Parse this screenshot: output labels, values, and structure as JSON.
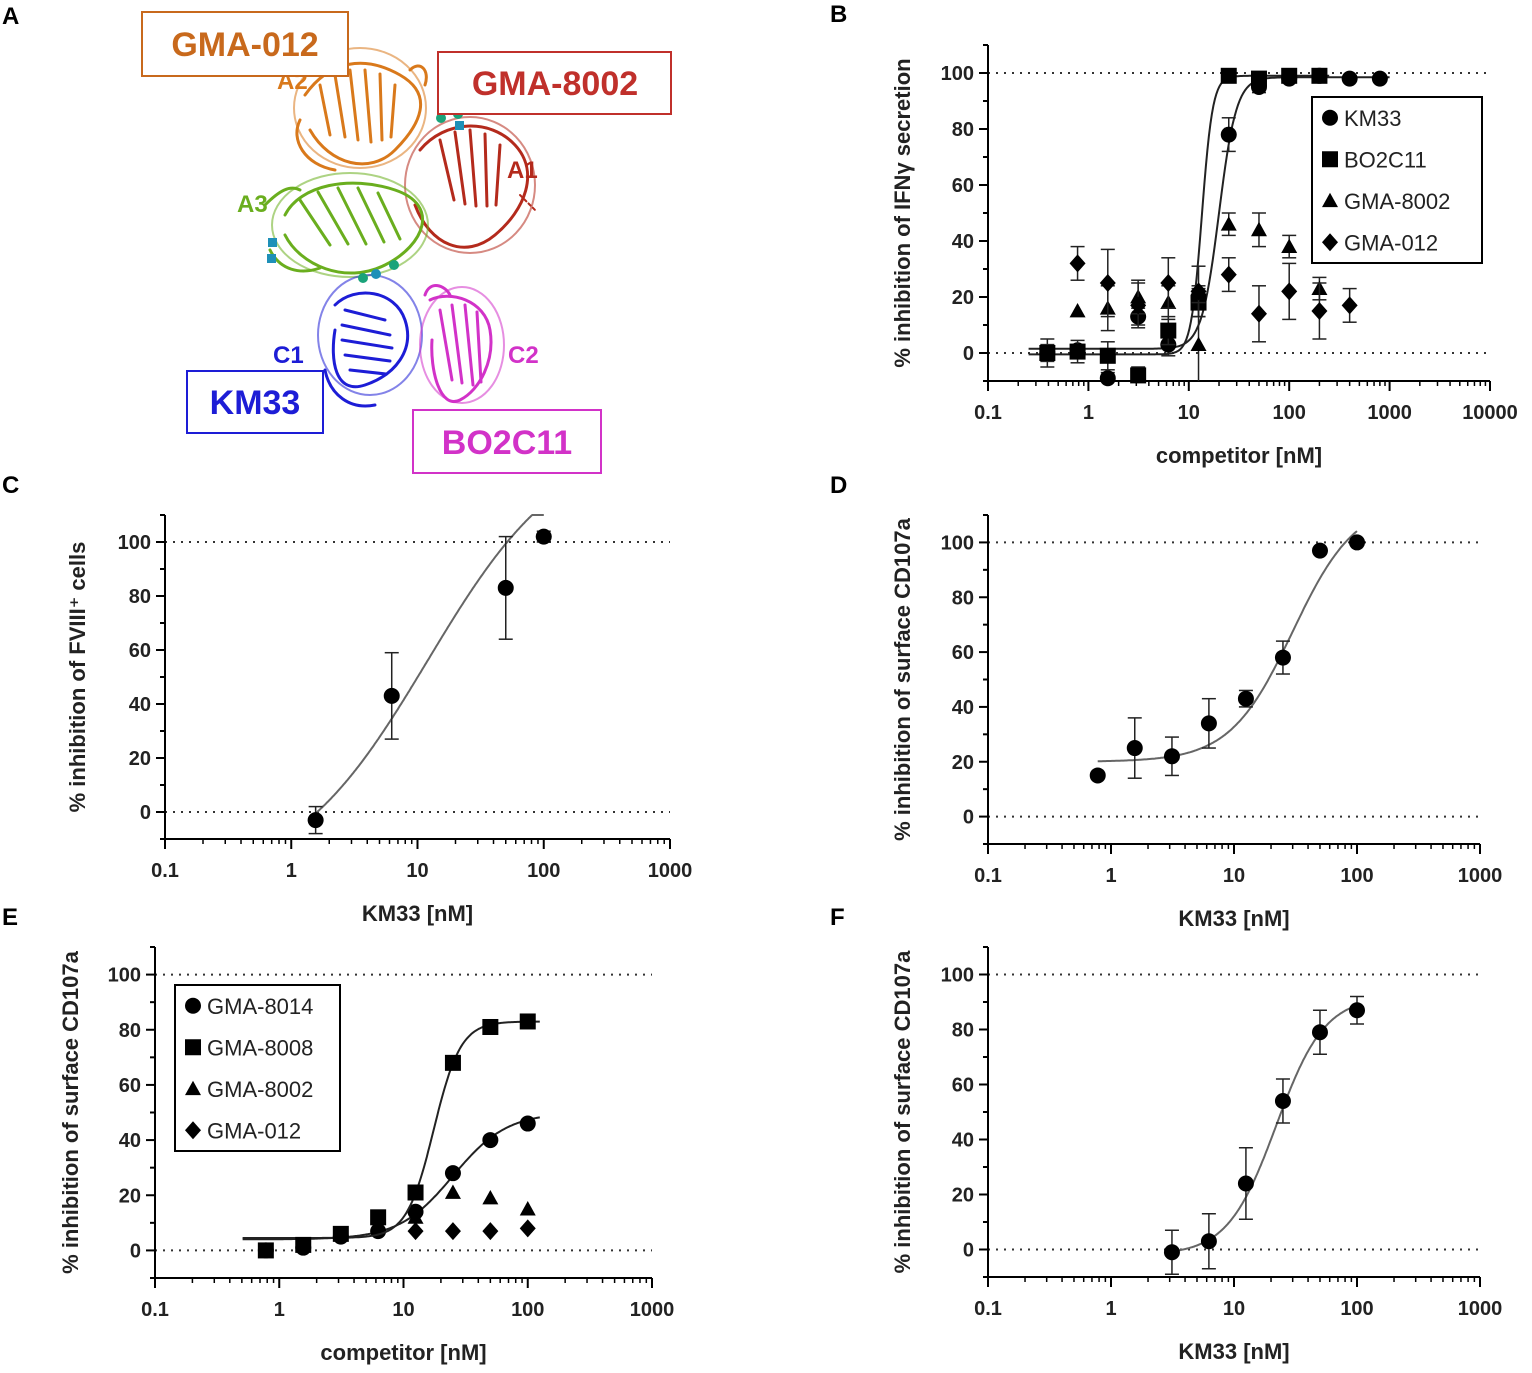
{
  "panel_a": {
    "letter": "A",
    "antibodies": [
      {
        "label": "GMA-012",
        "color": "#c8691c"
      },
      {
        "label": "GMA-8002",
        "color": "#c0302b"
      },
      {
        "label": "KM33",
        "color": "#1d1dd6"
      },
      {
        "label": "BO2C11",
        "color": "#d232c8"
      }
    ],
    "domains": [
      {
        "label": "A1",
        "color": "#b42a1c"
      },
      {
        "label": "A2",
        "color": "#d9791b"
      },
      {
        "label": "A3",
        "color": "#6aae1e"
      },
      {
        "label": "C1",
        "color": "#1d1dd6"
      },
      {
        "label": "C2",
        "color": "#d232c8"
      }
    ]
  },
  "chart_data": [
    {
      "panel": "B",
      "type": "scatter",
      "xlabel": "competitor [nM]",
      "ylabel": "% inhibition of IFNγ secretion",
      "xscale": "log",
      "xlim": [
        0.1,
        10000
      ],
      "ylim": [
        -10,
        110
      ],
      "xticks": [
        0.1,
        1,
        10,
        100,
        1000,
        10000
      ],
      "xtick_labels": [
        "0.1",
        "1",
        "10",
        "100",
        "1000",
        "10000"
      ],
      "yticks": [
        0,
        20,
        40,
        60,
        80,
        100
      ],
      "ytick_labels": [
        "0",
        "20",
        "40",
        "60",
        "80",
        "100"
      ],
      "reference_lines": [
        0,
        100
      ],
      "legend": "top-right",
      "series": [
        {
          "name": "KM33",
          "marker": "circle",
          "x": [
            0.39,
            0.78,
            1.56,
            3.13,
            6.25,
            12.5,
            25,
            50,
            100,
            200,
            400,
            800
          ],
          "y": [
            0,
            1,
            -9,
            13,
            3,
            20,
            78,
            95,
            98,
            99,
            98,
            98
          ],
          "err": [
            3,
            2,
            2,
            3,
            4,
            4,
            6,
            2,
            1,
            1,
            1,
            1
          ],
          "fit": {
            "bottom": 1.5,
            "top": 98.5,
            "ec50": 20,
            "hill": 5
          }
        },
        {
          "name": "BO2C11",
          "marker": "square",
          "x": [
            0.39,
            0.78,
            1.56,
            3.13,
            6.25,
            12.5,
            25,
            50,
            100,
            200
          ],
          "y": [
            0,
            0.5,
            -1,
            -8,
            8,
            18,
            99,
            98,
            99,
            99
          ],
          "err": [
            5,
            4,
            5,
            3,
            5,
            5,
            1,
            1,
            1,
            1
          ],
          "fit": {
            "bottom": -0.5,
            "top": 99,
            "ec50": 13.5,
            "hill": 8
          }
        },
        {
          "name": "GMA-8002",
          "marker": "triangle",
          "x": [
            0.78,
            1.56,
            3.13,
            6.25,
            12.5,
            25,
            50,
            100,
            200
          ],
          "y": [
            15,
            16,
            20,
            18,
            3,
            46,
            44,
            38,
            23
          ],
          "err": [
            0,
            8,
            6,
            6,
            15,
            4,
            6,
            4,
            4
          ]
        },
        {
          "name": "GMA-012",
          "marker": "diamond",
          "x": [
            0.78,
            1.56,
            3.13,
            6.25,
            12.5,
            25,
            50,
            100,
            200,
            400
          ],
          "y": [
            32,
            25,
            17,
            25,
            22,
            28,
            14,
            22,
            15,
            17
          ],
          "err": [
            6,
            12,
            8,
            9,
            9,
            6,
            10,
            10,
            10,
            6
          ]
        }
      ]
    },
    {
      "panel": "C",
      "type": "scatter",
      "xlabel": "KM33 [nM]",
      "ylabel": "% inhibition of FVIII⁺ cells",
      "xscale": "log",
      "xlim": [
        0.1,
        1000
      ],
      "ylim": [
        -10,
        110
      ],
      "xticks": [
        0.1,
        1,
        10,
        100,
        1000
      ],
      "xtick_labels": [
        "0.1",
        "1",
        "10",
        "100",
        "1000"
      ],
      "yticks": [
        0,
        20,
        40,
        60,
        80,
        100
      ],
      "ytick_labels": [
        "0",
        "20",
        "40",
        "60",
        "80",
        "100"
      ],
      "reference_lines": [
        0,
        100
      ],
      "series": [
        {
          "name": "KM33",
          "marker": "circle",
          "x": [
            1.56,
            6.25,
            50,
            100
          ],
          "y": [
            -3,
            43,
            83,
            102
          ],
          "err": [
            5,
            16,
            19,
            2
          ],
          "fit": {
            "bottom": -28,
            "top": 140,
            "ec50": 12,
            "hill": 0.8,
            "xmin": 1.56,
            "xmax": 100
          }
        }
      ]
    },
    {
      "panel": "D",
      "type": "scatter",
      "xlabel": "KM33 [nM]",
      "ylabel": "% inhibition of surface CD107a",
      "xscale": "log",
      "xlim": [
        0.1,
        1000
      ],
      "ylim": [
        -10,
        110
      ],
      "xticks": [
        0.1,
        1,
        10,
        100,
        1000
      ],
      "xtick_labels": [
        "0.1",
        "1",
        "10",
        "100",
        "1000"
      ],
      "yticks": [
        0,
        20,
        40,
        60,
        80,
        100
      ],
      "ytick_labels": [
        "0",
        "20",
        "40",
        "60",
        "80",
        "100"
      ],
      "reference_lines": [
        0,
        100
      ],
      "series": [
        {
          "name": "KM33",
          "marker": "circle",
          "x": [
            0.78,
            1.56,
            3.13,
            6.25,
            12.5,
            25,
            50,
            100
          ],
          "y": [
            15,
            25,
            22,
            34,
            43,
            58,
            97,
            100
          ],
          "err": [
            0,
            11,
            7,
            9,
            3,
            6,
            0,
            0
          ],
          "fit": {
            "bottom": 20,
            "top": 115,
            "ec50": 30,
            "hill": 1.7,
            "xmin": 0.78,
            "xmax": 100
          }
        }
      ]
    },
    {
      "panel": "E",
      "type": "scatter",
      "xlabel": "competitor [nM]",
      "ylabel": "% inhibition of surface CD107a",
      "xscale": "log",
      "xlim": [
        0.1,
        1000
      ],
      "ylim": [
        -10,
        110
      ],
      "xticks": [
        0.1,
        1,
        10,
        100,
        1000
      ],
      "xtick_labels": [
        "0.1",
        "1",
        "10",
        "100",
        "1000"
      ],
      "yticks": [
        0,
        20,
        40,
        60,
        80,
        100
      ],
      "ytick_labels": [
        "0",
        "20",
        "40",
        "60",
        "80",
        "100"
      ],
      "reference_lines": [
        0,
        100
      ],
      "legend": "top-left",
      "series": [
        {
          "name": "GMA-8014",
          "marker": "circle",
          "x": [
            0.78,
            1.56,
            3.13,
            6.25,
            12.5,
            25,
            50,
            100
          ],
          "y": [
            0,
            1,
            5,
            7,
            14,
            28,
            40,
            46
          ],
          "fit": {
            "bottom": 4,
            "top": 50,
            "ec50": 25,
            "hill": 2
          }
        },
        {
          "name": "GMA-8008",
          "marker": "square",
          "x": [
            0.78,
            1.56,
            3.13,
            6.25,
            12.5,
            25,
            50,
            100
          ],
          "y": [
            0,
            2,
            6,
            12,
            21,
            68,
            81,
            83
          ],
          "fit": {
            "bottom": 4.5,
            "top": 83,
            "ec50": 17.5,
            "hill": 4
          }
        },
        {
          "name": "GMA-8002",
          "marker": "triangle",
          "x": [
            12.5,
            25,
            50,
            100
          ],
          "y": [
            12,
            21,
            19,
            15
          ]
        },
        {
          "name": "GMA-012",
          "marker": "diamond",
          "x": [
            12.5,
            25,
            50,
            100
          ],
          "y": [
            7,
            7,
            7,
            8
          ]
        }
      ]
    },
    {
      "panel": "F",
      "type": "scatter",
      "xlabel": "KM33 [nM]",
      "ylabel": "% inhibition of surface CD107a",
      "xscale": "log",
      "xlim": [
        0.1,
        1000
      ],
      "ylim": [
        -10,
        110
      ],
      "xticks": [
        0.1,
        1,
        10,
        100,
        1000
      ],
      "xtick_labels": [
        "0.1",
        "1",
        "10",
        "100",
        "1000"
      ],
      "yticks": [
        0,
        20,
        40,
        60,
        80,
        100
      ],
      "ytick_labels": [
        "0",
        "20",
        "40",
        "60",
        "80",
        "100"
      ],
      "reference_lines": [
        0,
        100
      ],
      "series": [
        {
          "name": "KM33",
          "marker": "circle",
          "x": [
            3.13,
            6.25,
            12.5,
            25,
            50,
            100
          ],
          "y": [
            -1,
            3,
            24,
            54,
            79,
            87
          ],
          "err": [
            8,
            10,
            13,
            8,
            8,
            5
          ],
          "fit": {
            "bottom": -2,
            "top": 92,
            "ec50": 22,
            "hill": 2.2,
            "xmin": 3.13,
            "xmax": 100
          }
        }
      ]
    }
  ]
}
